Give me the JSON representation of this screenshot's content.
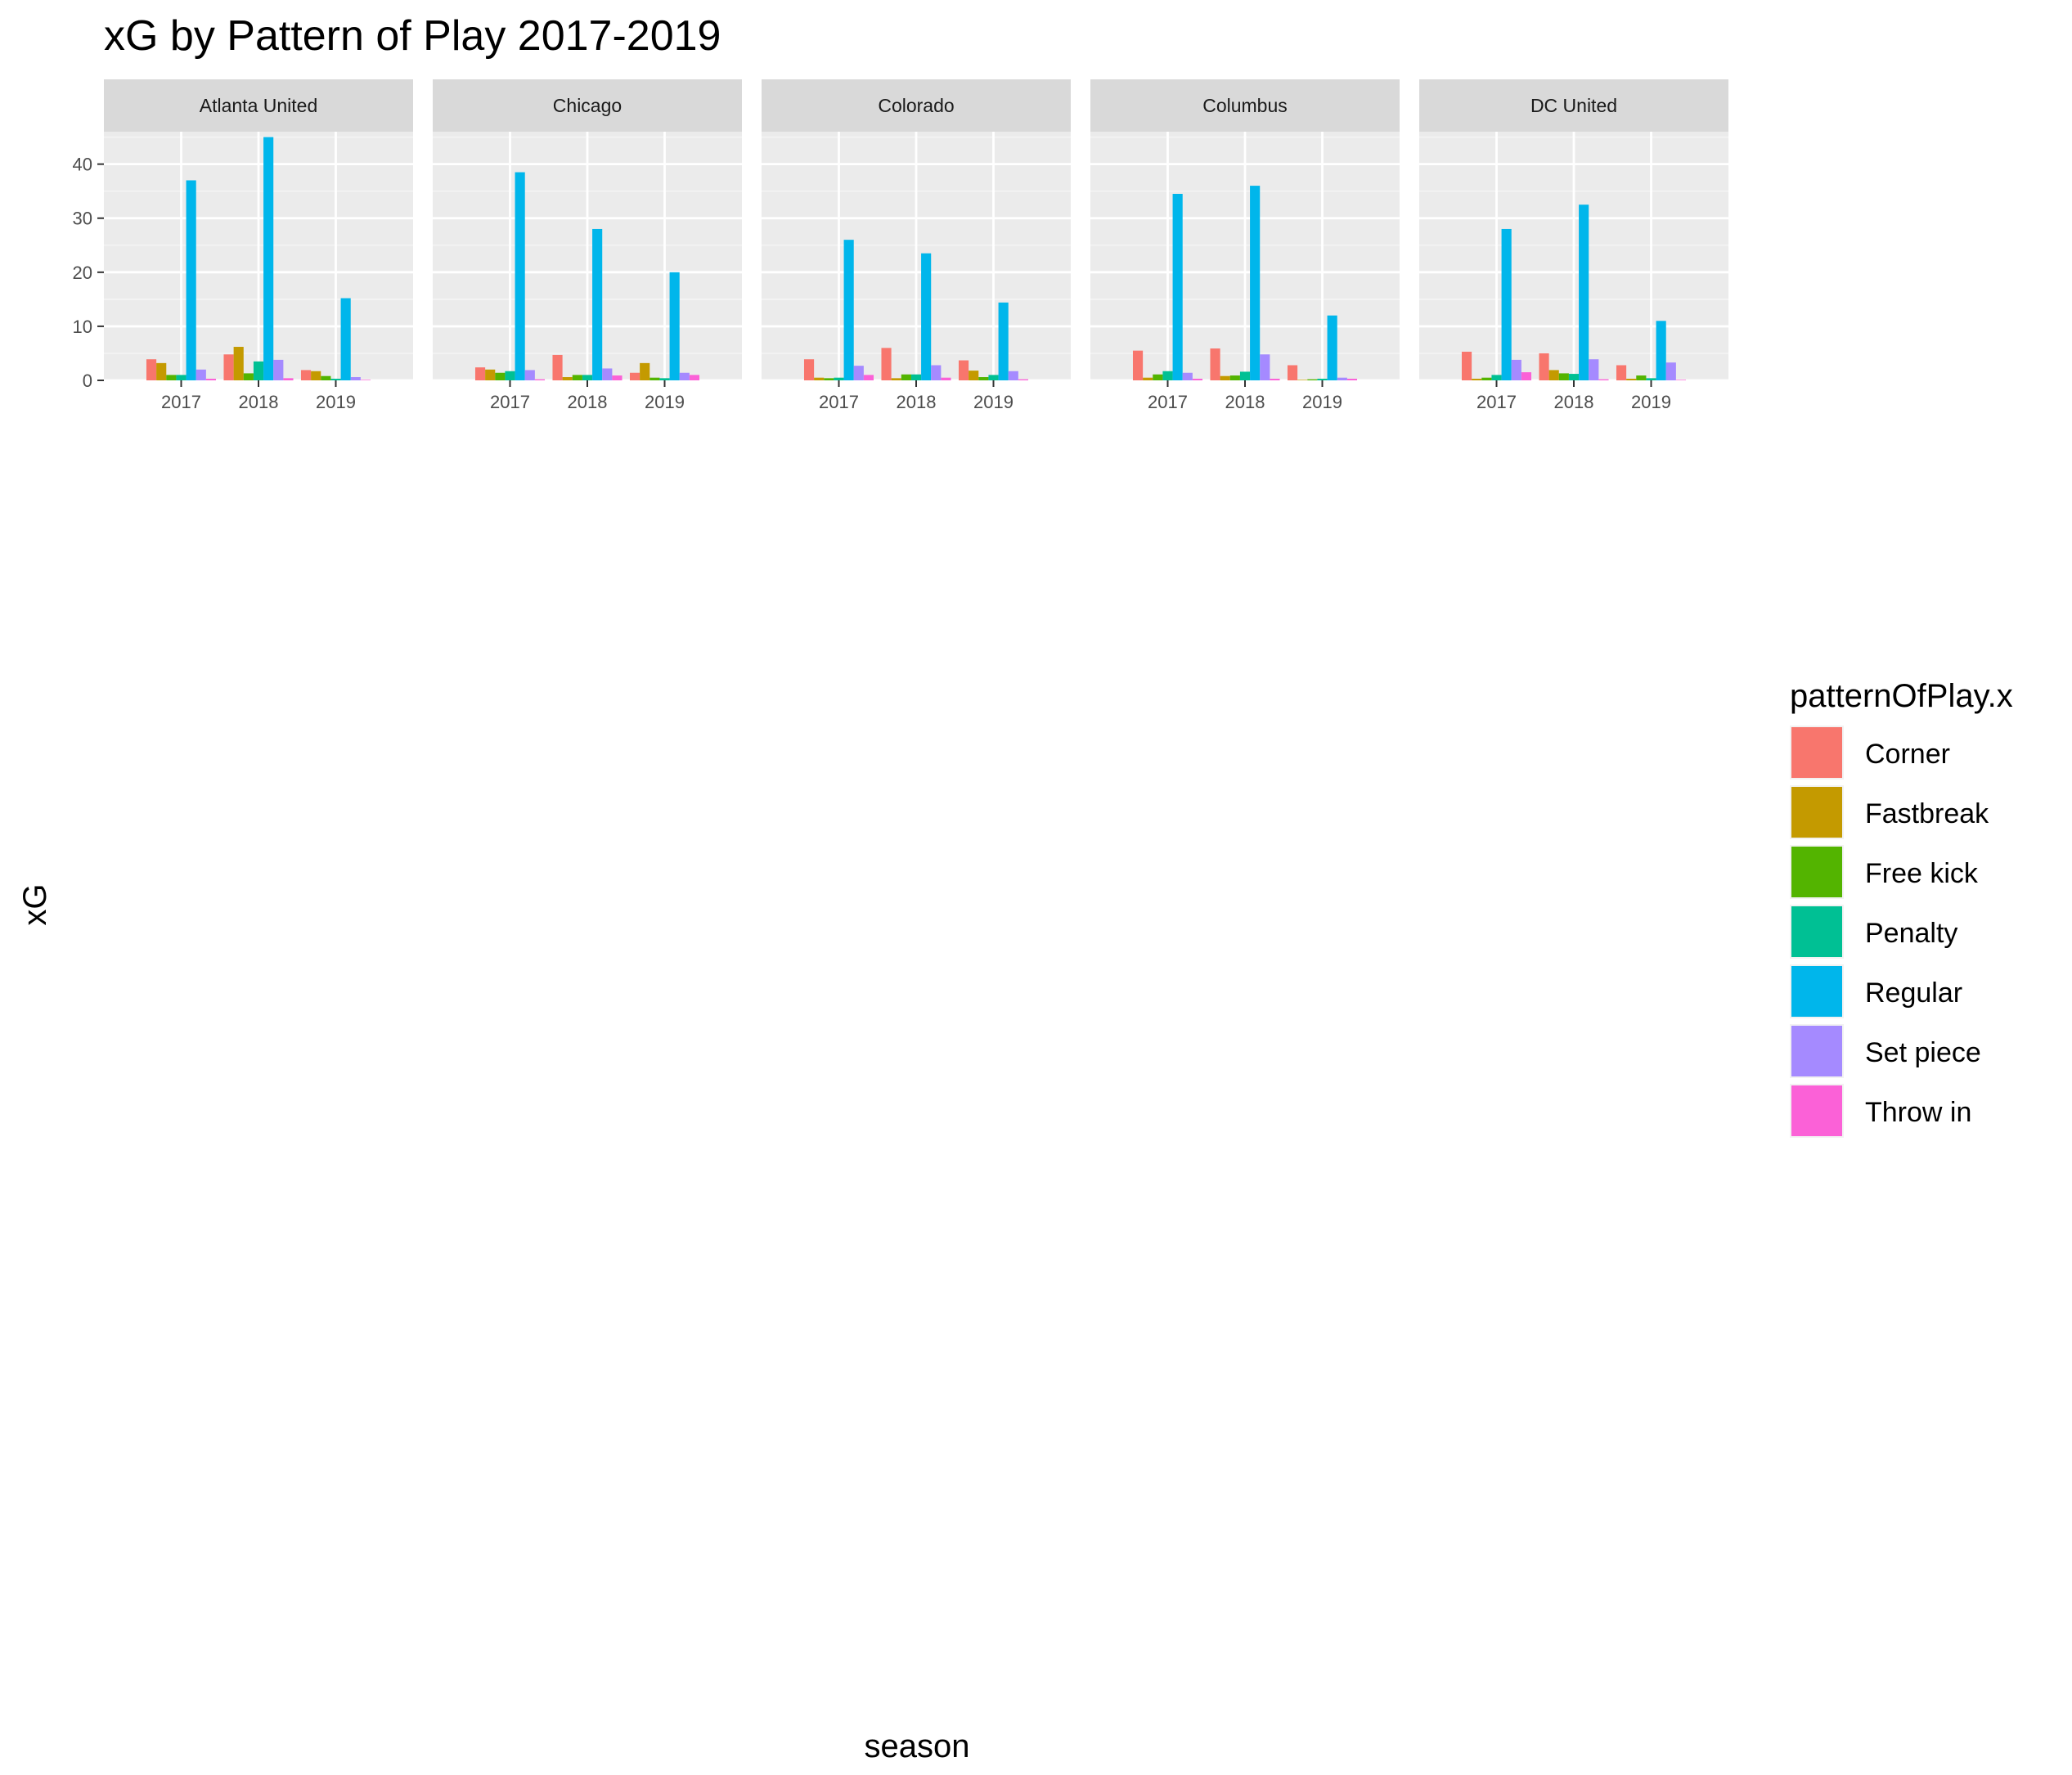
{
  "chart_data": {
    "type": "bar",
    "title": "xG by Pattern of Play 2017-2019",
    "xlabel": "season",
    "ylabel": "xG",
    "x_ticks": [
      "2017",
      "2018",
      "2019"
    ],
    "y_ticks": [
      "0",
      "10",
      "20",
      "30",
      "40"
    ],
    "ylim": [
      0,
      46
    ],
    "grid": true,
    "legend": {
      "title": "patternOfPlay.x",
      "position": "right",
      "entries": [
        "Corner",
        "Fastbreak",
        "Free kick",
        "Penalty",
        "Regular",
        "Set piece",
        "Throw in"
      ]
    },
    "series_colors": [
      "#F8766D",
      "#C49A00",
      "#53B400",
      "#00C094",
      "#00B6EB",
      "#A58AFF",
      "#FB61D7"
    ],
    "facets": [
      {
        "team": "Atlanta United",
        "seasons": {
          "2017": [
            3.9,
            3.2,
            1.0,
            1.0,
            37.0,
            2.0,
            0.3
          ],
          "2018": [
            4.8,
            6.2,
            1.3,
            3.5,
            45.0,
            3.8,
            0.4
          ],
          "2019": [
            1.9,
            1.7,
            0.8,
            0.3,
            15.2,
            0.6,
            0.1
          ]
        }
      },
      {
        "team": "Chicago",
        "seasons": {
          "2017": [
            2.4,
            2.0,
            1.4,
            1.7,
            38.5,
            1.9,
            0.2
          ],
          "2018": [
            4.7,
            0.6,
            1.0,
            1.0,
            28.0,
            2.2,
            0.9
          ],
          "2019": [
            1.4,
            3.2,
            0.5,
            0.4,
            20.0,
            1.4,
            1.0
          ]
        }
      },
      {
        "team": "Colorado",
        "seasons": {
          "2017": [
            3.9,
            0.5,
            0.4,
            0.5,
            26.0,
            2.7,
            1.0
          ],
          "2018": [
            6.0,
            0.4,
            1.1,
            1.1,
            23.5,
            2.8,
            0.5
          ],
          "2019": [
            3.7,
            1.8,
            0.6,
            1.0,
            14.4,
            1.7,
            0.2
          ]
        }
      },
      {
        "team": "Columbus",
        "seasons": {
          "2017": [
            5.5,
            0.5,
            1.1,
            1.7,
            34.5,
            1.4,
            0.3
          ],
          "2018": [
            5.9,
            0.8,
            0.9,
            1.6,
            36.0,
            4.8,
            0.3
          ],
          "2019": [
            2.8,
            0.1,
            0.2,
            0.3,
            12.0,
            0.5,
            0.3
          ]
        }
      },
      {
        "team": "DC United",
        "seasons": {
          "2017": [
            5.3,
            0.3,
            0.5,
            1.0,
            28.0,
            3.8,
            1.5
          ],
          "2018": [
            5.0,
            1.9,
            1.3,
            1.2,
            32.5,
            3.9,
            0.2
          ],
          "2019": [
            2.8,
            0.3,
            0.9,
            0.4,
            11.0,
            3.3,
            0.1
          ]
        }
      }
    ]
  }
}
